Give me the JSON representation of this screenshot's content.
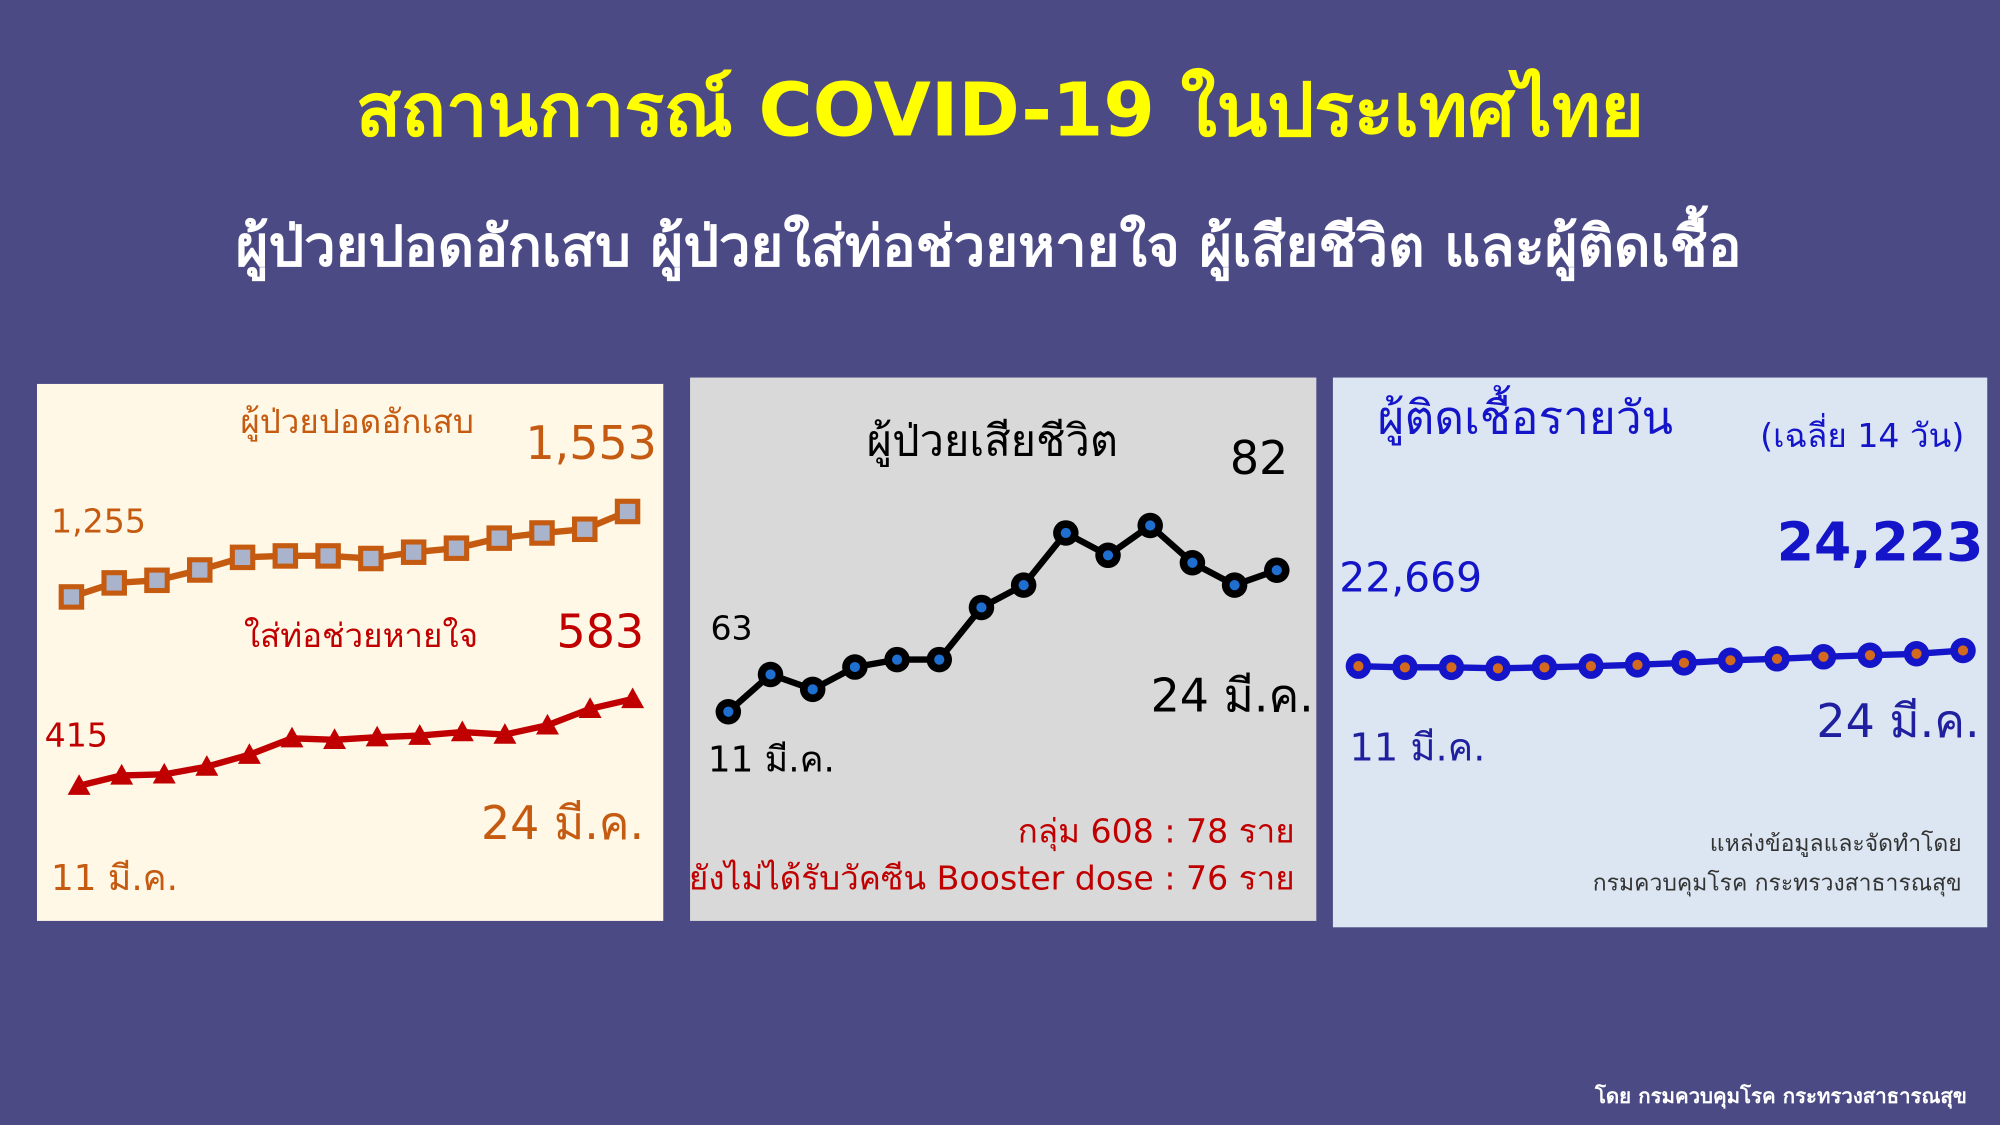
{
  "header": {
    "title": "สถานการณ์ COVID-19 ในประเทศไทย",
    "subtitle": "ผู้ป่วยปอดอักเสบ ผู้ป่วยใส่ท่อช่วยหายใจ ผู้เสียชีวิต และผู้ติดเชื้อ"
  },
  "chart_data": [
    {
      "type": "line",
      "categories": [
        "11 มี.ค.",
        null,
        null,
        null,
        null,
        null,
        null,
        null,
        null,
        null,
        null,
        null,
        null,
        "24 มี.ค."
      ],
      "series": [
        {
          "name": "ผู้ป่วยปอดอักเสบ",
          "color": "#c55a11",
          "marker": "square",
          "marker_color": "#a9b4cc",
          "values": [
            1255,
            1304,
            1313,
            1349,
            1393,
            1398,
            1398,
            1389,
            1411,
            1425,
            1460,
            1478,
            1491,
            1553
          ],
          "value_labels": [
            "1,255",
            null,
            null,
            null,
            null,
            null,
            null,
            null,
            null,
            null,
            null,
            null,
            null,
            "1,553"
          ]
        },
        {
          "name": "ใส่ท่อช่วยหายใจ",
          "color": "#c00000",
          "marker": "triangle",
          "marker_color": "#c00000",
          "values": [
            415,
            435,
            437,
            452,
            475,
            507,
            504,
            509,
            512,
            519,
            514,
            532,
            564,
            583
          ],
          "value_labels": [
            "415",
            null,
            null,
            null,
            null,
            null,
            null,
            null,
            null,
            null,
            null,
            null,
            null,
            "583"
          ]
        }
      ]
    },
    {
      "type": "line",
      "title": "ผู้ป่วยเสียชีวิต",
      "categories": [
        "11 มี.ค.",
        null,
        null,
        null,
        null,
        null,
        null,
        null,
        null,
        null,
        null,
        null,
        null,
        "24 มี.ค."
      ],
      "series": [
        {
          "color": "#000000",
          "marker": "circle",
          "marker_color": "#1f6fd1",
          "values": [
            63,
            68,
            66,
            69,
            70,
            70,
            77,
            80,
            87,
            84,
            88,
            83,
            80,
            82
          ],
          "value_labels": [
            "63",
            null,
            null,
            null,
            null,
            null,
            null,
            null,
            null,
            null,
            null,
            null,
            null,
            "82"
          ]
        }
      ],
      "notes": [
        "กลุ่ม 608 : 78 ราย",
        "ยังไม่ได้รับวัคซีน Booster dose : 76 ราย"
      ]
    },
    {
      "type": "line",
      "title": "ผู้ติดเชื้อรายวัน",
      "subtitle": "(เฉลี่ย 14 วัน)",
      "categories": [
        "11 มี.ค.",
        null,
        null,
        null,
        null,
        null,
        null,
        null,
        null,
        null,
        null,
        null,
        null,
        "24 มี.ค."
      ],
      "series": [
        {
          "color": "#1414c8",
          "marker": "circle",
          "marker_color": "#d2691e",
          "values": [
            22669,
            22550,
            22550,
            22450,
            22550,
            22669,
            22800,
            23000,
            23250,
            23400,
            23600,
            23750,
            23900,
            24223
          ],
          "value_labels": [
            "22,669",
            null,
            null,
            null,
            null,
            null,
            null,
            null,
            null,
            null,
            null,
            null,
            null,
            "24,223"
          ]
        }
      ],
      "notes": [
        "แหล่งข้อมูลและจัดทำโดย",
        "กรมควบคุมโรค กระทรวงสาธารณสุข"
      ]
    }
  ],
  "footer": "โดย กรมควบคุมโรค กระทรวงสาธารณสุข"
}
